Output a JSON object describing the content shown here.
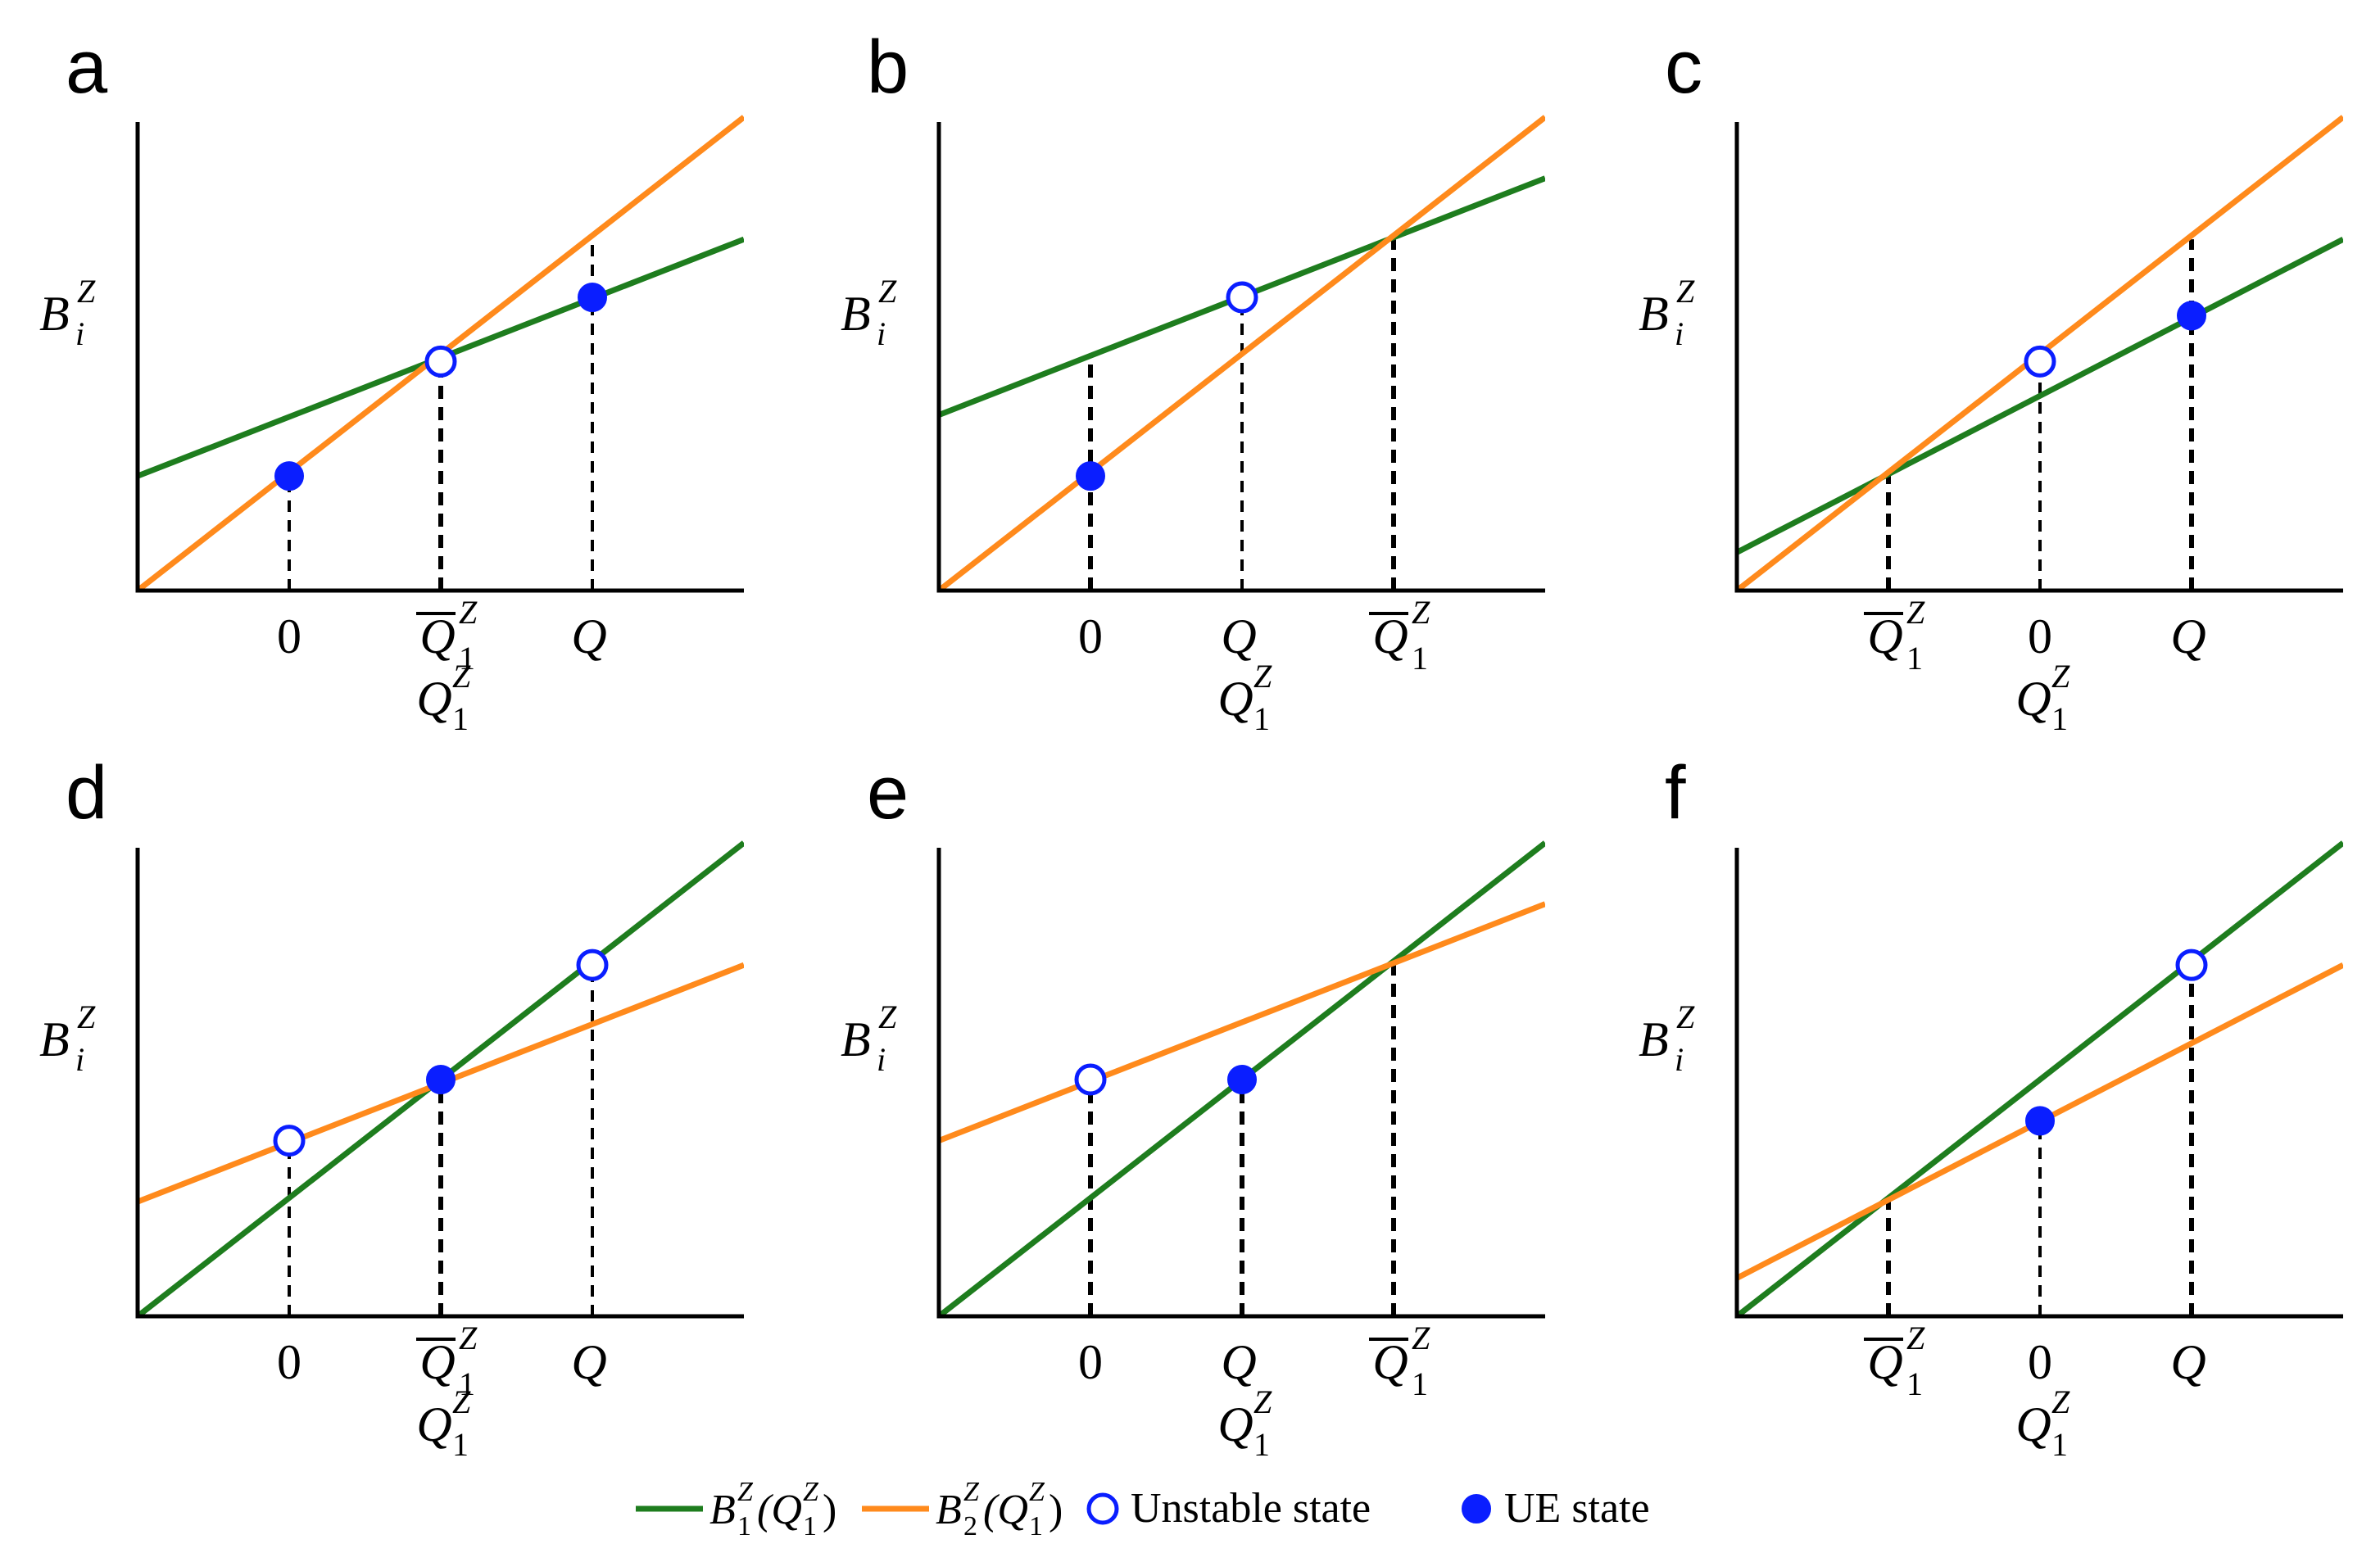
{
  "chart_data": [
    {
      "panel": "a",
      "type": "line",
      "ylabel": "B_i^Z",
      "xlabel": "Q_1^Z",
      "xlim": [
        -1,
        3
      ],
      "ylim": [
        0,
        3.1
      ],
      "series": [
        {
          "name": "B_1^Z(Q_1^Z)",
          "color": "#1e7d1e",
          "x": [
            -1,
            3
          ],
          "y": [
            0.75,
            2.3
          ]
        },
        {
          "name": "B_2^Z(Q_1^Z)",
          "color": "#ff8a1c",
          "x": [
            -1,
            3
          ],
          "y": [
            0.0,
            3.1
          ]
        }
      ],
      "points": [
        {
          "x": 0,
          "y": 0.75,
          "state": "UE"
        },
        {
          "x": 1,
          "y": 1.5,
          "state": "Unstable"
        },
        {
          "x": 2,
          "y": 1.92,
          "state": "UE"
        }
      ],
      "guides": [
        {
          "x": 0,
          "y": 0.75,
          "bold": false
        },
        {
          "x": 1,
          "y": 1.5,
          "bold": true
        },
        {
          "x": 2,
          "y": 2.3,
          "bold": false
        }
      ],
      "ticks": [
        {
          "x": 0,
          "label": "0",
          "overline": false
        },
        {
          "x": 1,
          "label": "Q",
          "overline": true
        },
        {
          "x": 2,
          "label": "Q",
          "overline": false
        }
      ]
    },
    {
      "panel": "b",
      "type": "line",
      "ylabel": "B_i^Z",
      "xlabel": "Q_1^Z",
      "xlim": [
        -1,
        3
      ],
      "ylim": [
        0,
        3.1
      ],
      "series": [
        {
          "name": "B_1^Z(Q_1^Z)",
          "color": "#1e7d1e",
          "x": [
            -1,
            3
          ],
          "y": [
            1.15,
            2.7
          ]
        },
        {
          "name": "B_2^Z(Q_1^Z)",
          "color": "#ff8a1c",
          "x": [
            -1,
            3
          ],
          "y": [
            0.0,
            3.1
          ]
        }
      ],
      "points": [
        {
          "x": 0,
          "y": 0.75,
          "state": "UE"
        },
        {
          "x": 1,
          "y": 1.92,
          "state": "Unstable"
        }
      ],
      "guides": [
        {
          "x": 0,
          "y": 1.5,
          "bold": true
        },
        {
          "x": 1,
          "y": 1.92,
          "bold": false
        },
        {
          "x": 2,
          "y": 2.3,
          "bold": true
        }
      ],
      "ticks": [
        {
          "x": 0,
          "label": "0",
          "overline": false
        },
        {
          "x": 1,
          "label": "Q",
          "overline": false
        },
        {
          "x": 2,
          "label": "Q",
          "overline": true
        }
      ]
    },
    {
      "panel": "c",
      "type": "line",
      "ylabel": "B_i^Z",
      "xlabel": "Q_1^Z",
      "xlim": [
        -1,
        3
      ],
      "ylim": [
        0,
        3.1
      ],
      "series": [
        {
          "name": "B_1^Z(Q_1^Z)",
          "color": "#1e7d1e",
          "x": [
            -1,
            3
          ],
          "y": [
            0.25,
            2.3
          ]
        },
        {
          "name": "B_2^Z(Q_1^Z)",
          "color": "#ff8a1c",
          "x": [
            -1,
            3
          ],
          "y": [
            0.0,
            3.1
          ]
        }
      ],
      "points": [
        {
          "x": 1,
          "y": 1.5,
          "state": "Unstable"
        },
        {
          "x": 2,
          "y": 1.8,
          "state": "UE"
        }
      ],
      "guides": [
        {
          "x": 0,
          "y": 0.75,
          "bold": true
        },
        {
          "x": 1,
          "y": 1.5,
          "bold": false
        },
        {
          "x": 2,
          "y": 2.3,
          "bold": true
        }
      ],
      "ticks": [
        {
          "x": 0,
          "label": "Q",
          "overline": true
        },
        {
          "x": 1,
          "label": "0",
          "overline": false
        },
        {
          "x": 2,
          "label": "Q",
          "overline": false
        }
      ]
    },
    {
      "panel": "d",
      "type": "line",
      "ylabel": "B_i^Z",
      "xlabel": "Q_1^Z",
      "xlim": [
        -1,
        3
      ],
      "ylim": [
        0,
        3.1
      ],
      "series": [
        {
          "name": "B_1^Z(Q_1^Z)",
          "color": "#1e7d1e",
          "x": [
            -1,
            3
          ],
          "y": [
            0.0,
            3.1
          ]
        },
        {
          "name": "B_2^Z(Q_1^Z)",
          "color": "#ff8a1c",
          "x": [
            -1,
            3
          ],
          "y": [
            0.75,
            2.3
          ]
        }
      ],
      "points": [
        {
          "x": 0,
          "y": 1.15,
          "state": "Unstable"
        },
        {
          "x": 1,
          "y": 1.55,
          "state": "UE"
        },
        {
          "x": 2,
          "y": 2.3,
          "state": "Unstable"
        }
      ],
      "guides": [
        {
          "x": 0,
          "y": 1.15,
          "bold": false
        },
        {
          "x": 1,
          "y": 1.55,
          "bold": true
        },
        {
          "x": 2,
          "y": 2.3,
          "bold": false
        }
      ],
      "ticks": [
        {
          "x": 0,
          "label": "0",
          "overline": false
        },
        {
          "x": 1,
          "label": "Q",
          "overline": true
        },
        {
          "x": 2,
          "label": "Q",
          "overline": false
        }
      ]
    },
    {
      "panel": "e",
      "type": "line",
      "ylabel": "B_i^Z",
      "xlabel": "Q_1^Z",
      "xlim": [
        -1,
        3
      ],
      "ylim": [
        0,
        3.1
      ],
      "series": [
        {
          "name": "B_1^Z(Q_1^Z)",
          "color": "#1e7d1e",
          "x": [
            -1,
            3
          ],
          "y": [
            0.0,
            3.1
          ]
        },
        {
          "name": "B_2^Z(Q_1^Z)",
          "color": "#ff8a1c",
          "x": [
            -1,
            3
          ],
          "y": [
            1.15,
            2.7
          ]
        }
      ],
      "points": [
        {
          "x": 0,
          "y": 1.55,
          "state": "Unstable"
        },
        {
          "x": 1,
          "y": 1.55,
          "state": "UE"
        }
      ],
      "guides": [
        {
          "x": 0,
          "y": 1.55,
          "bold": true
        },
        {
          "x": 1,
          "y": 1.55,
          "bold": true
        },
        {
          "x": 2,
          "y": 2.3,
          "bold": true
        }
      ],
      "ticks": [
        {
          "x": 0,
          "label": "0",
          "overline": false
        },
        {
          "x": 1,
          "label": "Q",
          "overline": false
        },
        {
          "x": 2,
          "label": "Q",
          "overline": true
        }
      ]
    },
    {
      "panel": "f",
      "type": "line",
      "ylabel": "B_i^Z",
      "xlabel": "Q_1^Z",
      "xlim": [
        -1,
        3
      ],
      "ylim": [
        0,
        3.1
      ],
      "series": [
        {
          "name": "B_1^Z(Q_1^Z)",
          "color": "#1e7d1e",
          "x": [
            -1,
            3
          ],
          "y": [
            0.0,
            3.1
          ]
        },
        {
          "name": "B_2^Z(Q_1^Z)",
          "color": "#ff8a1c",
          "x": [
            -1,
            3
          ],
          "y": [
            0.25,
            2.3
          ]
        }
      ],
      "points": [
        {
          "x": 1,
          "y": 1.28,
          "state": "UE"
        },
        {
          "x": 2,
          "y": 2.3,
          "state": "Unstable"
        }
      ],
      "guides": [
        {
          "x": 0,
          "y": 0.75,
          "bold": true
        },
        {
          "x": 1,
          "y": 1.28,
          "bold": false
        },
        {
          "x": 2,
          "y": 2.3,
          "bold": true
        }
      ],
      "ticks": [
        {
          "x": 0,
          "label": "Q",
          "overline": true
        },
        {
          "x": 1,
          "label": "0",
          "overline": false
        },
        {
          "x": 2,
          "label": "Q",
          "overline": false
        }
      ]
    }
  ],
  "legend": {
    "placement": "bottom-center",
    "items": [
      {
        "kind": "line",
        "color": "#1e7d1e",
        "label": "B",
        "sub": "1",
        "sup": "Z",
        "arg": "(Q",
        "arg_sub": "1",
        "arg_sup": "Z",
        "close": ")"
      },
      {
        "kind": "line",
        "color": "#ff8a1c",
        "label": "B",
        "sub": "2",
        "sup": "Z",
        "arg": "(Q",
        "arg_sub": "1",
        "arg_sup": "Z",
        "close": ")"
      },
      {
        "kind": "open-circle",
        "color": "#0a1eff",
        "label": "Unstable state"
      },
      {
        "kind": "filled-circle",
        "color": "#0a1eff",
        "label": "UE state"
      }
    ]
  },
  "colors": {
    "ue": "#0a1eff",
    "axis": "#000000"
  }
}
